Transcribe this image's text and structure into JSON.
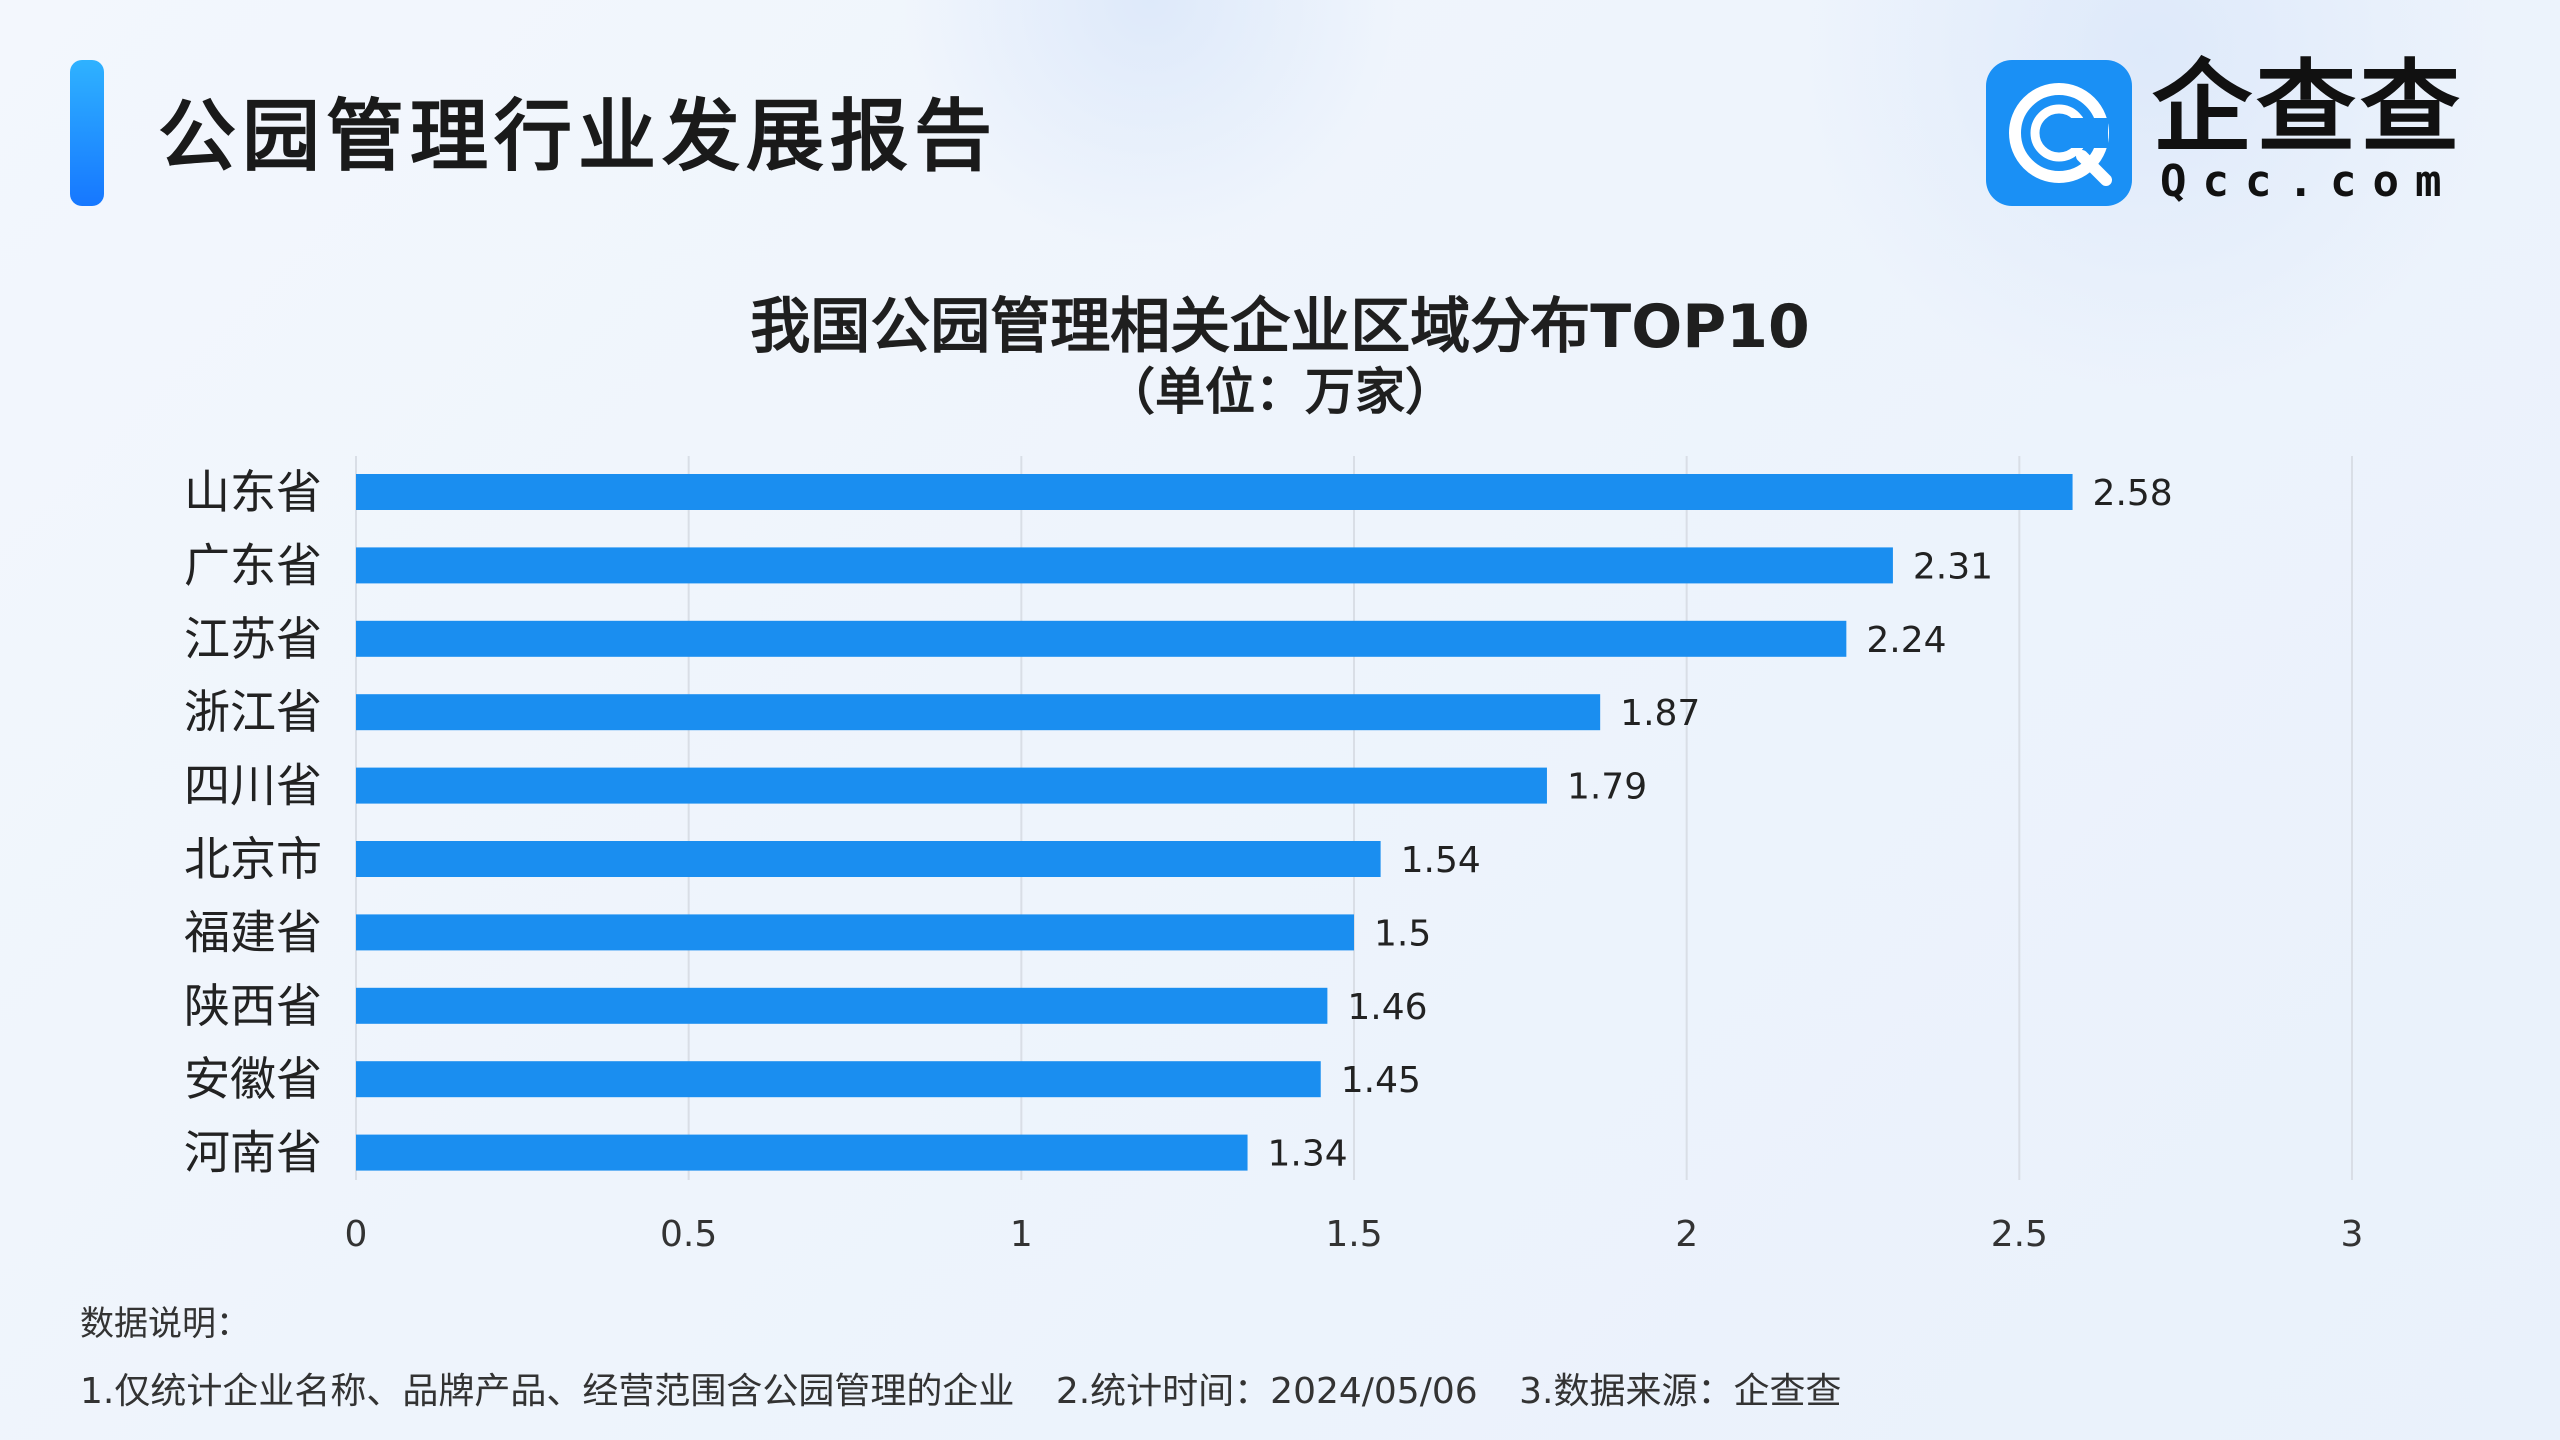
{
  "header": {
    "title": "公园管理行业发展报告"
  },
  "brand": {
    "name_cn": "企查查",
    "name_en": "Qcc.com",
    "color": "#1a90f5"
  },
  "chart_data": {
    "type": "bar",
    "orientation": "horizontal",
    "title": "我国公园管理相关企业区域分布TOP10",
    "subtitle": "（单位：万家）",
    "categories": [
      "山东省",
      "广东省",
      "江苏省",
      "浙江省",
      "四川省",
      "北京市",
      "福建省",
      "陕西省",
      "安徽省",
      "河南省"
    ],
    "values": [
      2.58,
      2.31,
      2.24,
      1.87,
      1.79,
      1.54,
      1.5,
      1.46,
      1.45,
      1.34
    ],
    "value_labels": [
      "2.58",
      "2.31",
      "2.24",
      "1.87",
      "1.79",
      "1.54",
      "1.5",
      "1.46",
      "1.45",
      "1.34"
    ],
    "xlim": [
      0,
      3
    ],
    "x_ticks": [
      0,
      0.5,
      1,
      1.5,
      2,
      2.5,
      3
    ],
    "x_tick_labels": [
      "0",
      "0.5",
      "1",
      "1.5",
      "2",
      "2.5",
      "3"
    ],
    "xlabel": "",
    "ylabel": "",
    "grid": true,
    "bar_color": "#1a8ef0"
  },
  "notes": {
    "label": "数据说明：",
    "items": [
      "1.仅统计企业名称、品牌产品、经营范围含公园管理的企业",
      "2.统计时间：2024/05/06",
      "3.数据来源：企查查"
    ]
  }
}
